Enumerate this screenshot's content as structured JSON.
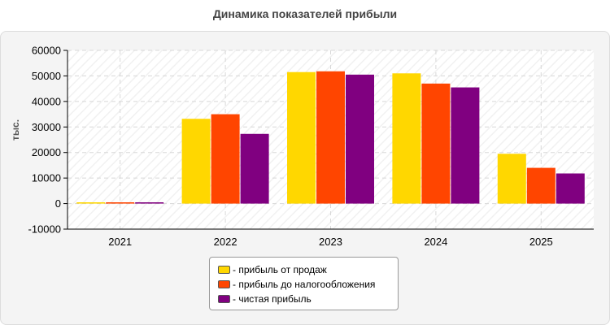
{
  "chart_data": {
    "type": "bar",
    "title": "Динамика показателей прибыли",
    "ylabel": "тыс.",
    "xlabel": "",
    "categories": [
      "2021",
      "2022",
      "2023",
      "2024",
      "2025"
    ],
    "ylim": [
      -10000,
      60000
    ],
    "yticks": [
      -10000,
      0,
      10000,
      20000,
      30000,
      40000,
      50000,
      60000
    ],
    "grid": true,
    "legend_position": "bottom",
    "series": [
      {
        "name": "- прибыль от продаж",
        "color": "#FFD700",
        "values": [
          500,
          33200,
          51500,
          51000,
          19500
        ]
      },
      {
        "name": "- прибыль до налогообложения",
        "color": "#FF4500",
        "values": [
          500,
          35000,
          51800,
          47000,
          14000
        ]
      },
      {
        "name": "- чистая прибыль",
        "color": "#800080",
        "values": [
          500,
          27300,
          50500,
          45500,
          11800
        ]
      }
    ]
  }
}
